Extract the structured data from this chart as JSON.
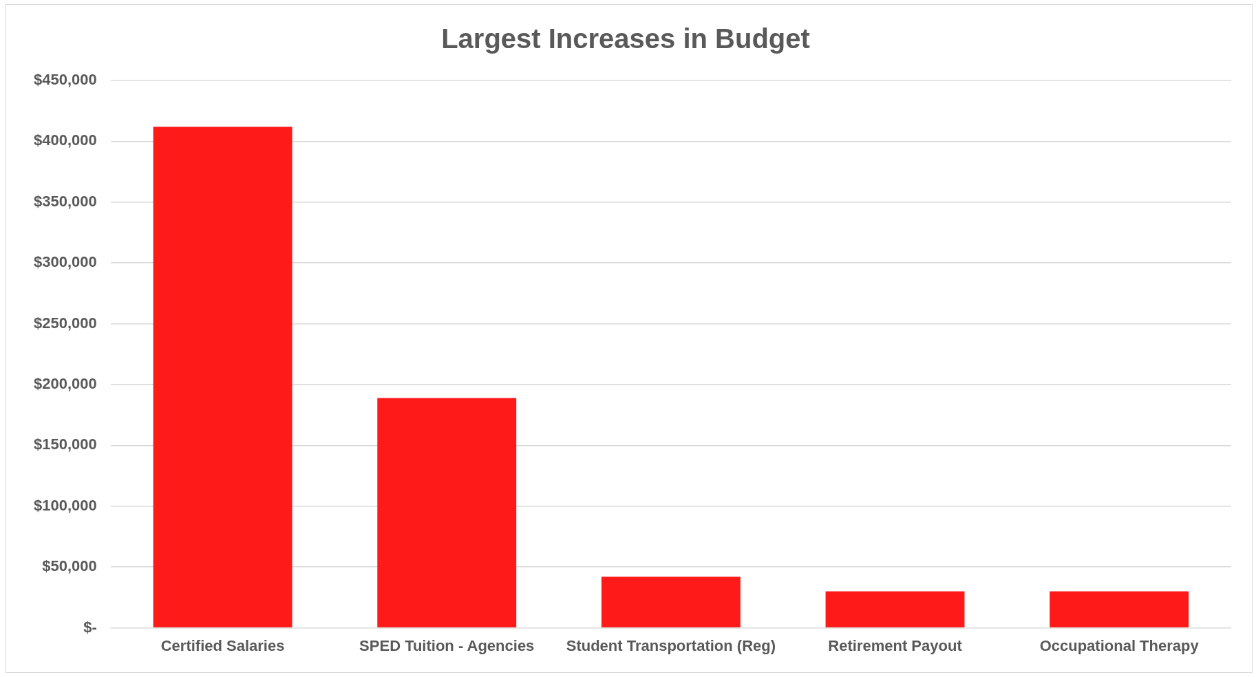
{
  "chart_data": {
    "type": "bar",
    "title": "Largest Increases in Budget",
    "categories": [
      "Certified Salaries",
      "SPED Tuition - Agencies",
      "Student Transportation (Reg)",
      "Retirement Payout",
      "Occupational Therapy"
    ],
    "values": [
      412000,
      189000,
      42000,
      30000,
      30000
    ],
    "color": "#ff1a1a",
    "ylim": [
      0,
      450000
    ],
    "yticks": [
      {
        "value": 0,
        "label": "$-"
      },
      {
        "value": 50000,
        "label": "$50,000"
      },
      {
        "value": 100000,
        "label": "$100,000"
      },
      {
        "value": 150000,
        "label": "$150,000"
      },
      {
        "value": 200000,
        "label": "$200,000"
      },
      {
        "value": 250000,
        "label": "$250,000"
      },
      {
        "value": 300000,
        "label": "$300,000"
      },
      {
        "value": 350000,
        "label": "$350,000"
      },
      {
        "value": 400000,
        "label": "$400,000"
      },
      {
        "value": 450000,
        "label": "$450,000"
      }
    ],
    "grid": "y"
  }
}
